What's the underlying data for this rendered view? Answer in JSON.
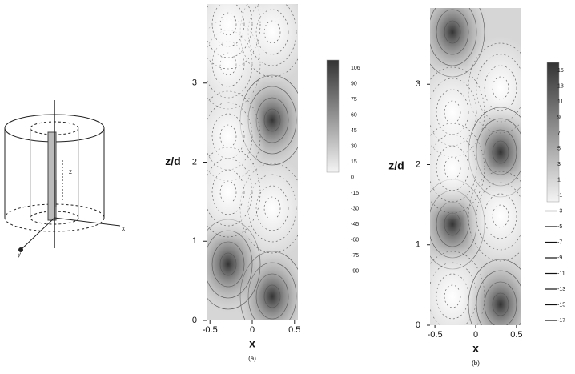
{
  "diagram": {
    "labels": [
      "z",
      "x",
      "y"
    ]
  },
  "panels": [
    {
      "y_label": "z/d",
      "x_label": "x",
      "caption": "(a)",
      "xticks": [
        -0.5,
        0,
        0.5
      ],
      "yticks": [
        0,
        1,
        2,
        3
      ],
      "xlim": [
        -0.54,
        0.54
      ],
      "ylim": [
        0,
        4
      ],
      "colorbar": [
        "106",
        "90",
        "75",
        "60",
        "45",
        "30",
        "15",
        "0",
        "-15",
        "-30",
        "-45",
        "-60",
        "-75",
        "-90"
      ]
    },
    {
      "y_label": "z/d",
      "x_label": "x",
      "caption": "(b)",
      "xticks": [
        -0.5,
        0,
        0.5
      ],
      "yticks": [
        0,
        1,
        2,
        3
      ],
      "xlim": [
        -0.56,
        0.56
      ],
      "ylim": [
        0,
        3.95
      ],
      "colorbar": [
        "15",
        "13",
        "11",
        "9",
        "7",
        "5",
        "3",
        "1",
        "-1",
        "-3",
        "-5",
        "-7",
        "-9",
        "-11",
        "-13",
        "-15",
        "-17"
      ]
    }
  ]
}
